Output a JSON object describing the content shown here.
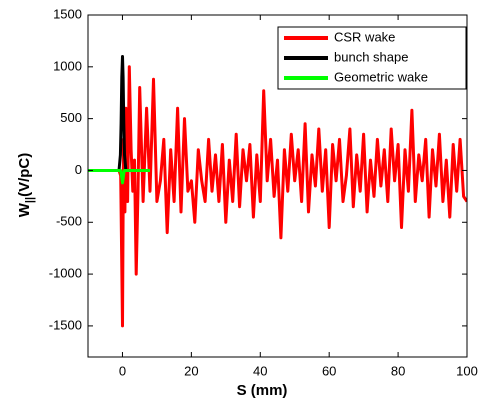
{
  "chart_data": {
    "type": "line",
    "xlabel": "S (mm)",
    "ylabel": {
      "base": "W",
      "subscript": "||",
      "rest": "(V/pC)"
    },
    "xlim": [
      -10,
      100
    ],
    "ylim": [
      -1800,
      1500
    ],
    "xticks": [
      0,
      20,
      40,
      60,
      80,
      100
    ],
    "yticks": [
      -1500,
      -1000,
      -500,
      0,
      500,
      1000,
      1500
    ],
    "legend": "upper right",
    "series": [
      {
        "name": "CSR wake",
        "color": "#ff0000",
        "x": [
          -10,
          -1,
          -0.5,
          0,
          0.3,
          0.7,
          1,
          1.5,
          2,
          2.5,
          3,
          3.5,
          4,
          4.5,
          5,
          6,
          7,
          8,
          9,
          10,
          11,
          12,
          13,
          14,
          15,
          16,
          17,
          18,
          19,
          20,
          21,
          22,
          23,
          24,
          25,
          26,
          27,
          28,
          29,
          30,
          31,
          32,
          33,
          34,
          35,
          36,
          37,
          38,
          39,
          40,
          41,
          42,
          43,
          44,
          45,
          46,
          47,
          48,
          49,
          50,
          51,
          52,
          53,
          54,
          55,
          56,
          57,
          58,
          59,
          60,
          61,
          62,
          63,
          64,
          65,
          66,
          67,
          68,
          69,
          70,
          71,
          72,
          73,
          74,
          75,
          76,
          77,
          78,
          79,
          80,
          81,
          82,
          83,
          84,
          85,
          86,
          87,
          88,
          89,
          90,
          91,
          92,
          93,
          94,
          95,
          96,
          97,
          98,
          99,
          100
        ],
        "values": [
          0,
          0,
          -50,
          -1500,
          300,
          -400,
          600,
          -300,
          1000,
          200,
          -200,
          100,
          -1000,
          -200,
          800,
          -300,
          600,
          -200,
          880,
          -300,
          -100,
          300,
          -600,
          200,
          -300,
          600,
          -400,
          500,
          -200,
          -100,
          -500,
          200,
          -100,
          -300,
          300,
          -200,
          150,
          -300,
          250,
          -500,
          100,
          -300,
          350,
          -350,
          200,
          -100,
          250,
          -450,
          150,
          -300,
          770,
          -100,
          300,
          -250,
          100,
          -650,
          200,
          -200,
          350,
          -100,
          200,
          -300,
          450,
          -400,
          150,
          -150,
          400,
          -200,
          200,
          -550,
          250,
          -100,
          300,
          -300,
          -50,
          400,
          -350,
          150,
          -200,
          350,
          -400,
          100,
          -250,
          300,
          -150,
          200,
          -300,
          400,
          -100,
          250,
          -550,
          200,
          -200,
          580,
          -300,
          150,
          -100,
          300,
          -450,
          200,
          -150,
          350,
          -300,
          100,
          -450,
          250,
          -200,
          300,
          -250,
          -300
        ]
      },
      {
        "name": "bunch shape",
        "color": "#000000",
        "x": [
          -1,
          -0.6,
          -0.4,
          -0.2,
          0,
          0.2,
          0.4,
          0.6,
          1
        ],
        "values": [
          0,
          150,
          450,
          900,
          1100,
          900,
          450,
          150,
          0
        ]
      },
      {
        "name": "Geometric wake",
        "color": "#00ff00",
        "x": [
          -10,
          -0.5,
          0,
          0.5,
          8
        ],
        "values": [
          0,
          0,
          -120,
          0,
          0
        ]
      }
    ]
  }
}
